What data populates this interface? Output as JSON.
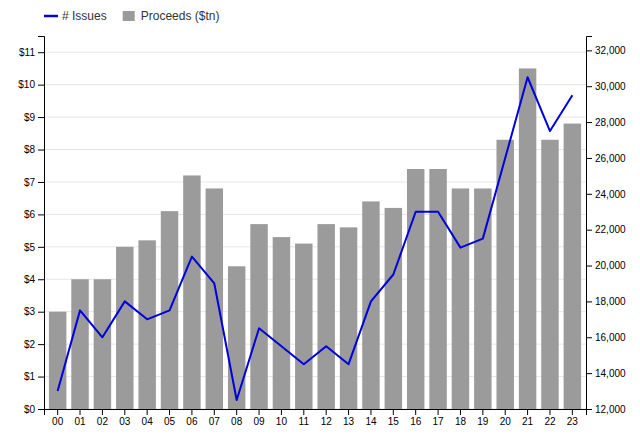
{
  "chart_data": {
    "type": "bar",
    "categories": [
      "00",
      "01",
      "02",
      "03",
      "04",
      "05",
      "06",
      "07",
      "08",
      "09",
      "10",
      "11",
      "12",
      "13",
      "14",
      "15",
      "16",
      "17",
      "18",
      "19",
      "20",
      "21",
      "22",
      "23"
    ],
    "series": [
      {
        "name": "# Issues",
        "type": "line",
        "color": "#0000dd",
        "axis": "y2",
        "values": [
          13000,
          17500,
          16000,
          18000,
          17000,
          17500,
          20500,
          19000,
          12500,
          16500,
          15500,
          14500,
          15500,
          14500,
          18000,
          19500,
          23000,
          23000,
          21000,
          21500,
          26000,
          30500,
          27500,
          29500
        ]
      },
      {
        "name": "Proceeds ($tn)",
        "type": "bar",
        "color": "#9b9b9b",
        "values": [
          3.0,
          4.0,
          4.0,
          5.0,
          5.2,
          6.1,
          7.2,
          6.8,
          4.4,
          5.7,
          5.3,
          5.1,
          5.7,
          5.6,
          6.4,
          6.2,
          7.4,
          7.4,
          6.8,
          6.8,
          8.3,
          10.5,
          8.3,
          8.8
        ]
      }
    ],
    "ylim": [
      0,
      11.5
    ],
    "yticks": [
      {
        "value": 0,
        "label": "$0"
      },
      {
        "value": 1,
        "label": "$1"
      },
      {
        "value": 2,
        "label": "$2"
      },
      {
        "value": 3,
        "label": "$3"
      },
      {
        "value": 4,
        "label": "$4"
      },
      {
        "value": 5,
        "label": "$5"
      },
      {
        "value": 6,
        "label": "$6"
      },
      {
        "value": 7,
        "label": "$7"
      },
      {
        "value": 8,
        "label": "$8"
      },
      {
        "value": 9,
        "label": "$9"
      },
      {
        "value": 10,
        "label": "$10"
      },
      {
        "value": 11,
        "label": "$11"
      }
    ],
    "y2lim": [
      12000,
      32800
    ],
    "y2ticks": [
      {
        "value": 12000,
        "label": "12,000"
      },
      {
        "value": 14000,
        "label": "14,000"
      },
      {
        "value": 16000,
        "label": "16,000"
      },
      {
        "value": 18000,
        "label": "18,000"
      },
      {
        "value": 20000,
        "label": "20,000"
      },
      {
        "value": 22000,
        "label": "22,000"
      },
      {
        "value": 24000,
        "label": "24,000"
      },
      {
        "value": 26000,
        "label": "26,000"
      },
      {
        "value": 28000,
        "label": "28,000"
      },
      {
        "value": 30000,
        "label": "30,000"
      },
      {
        "value": 32000,
        "label": "32,000"
      }
    ],
    "grid": true,
    "legend": "upper left"
  }
}
